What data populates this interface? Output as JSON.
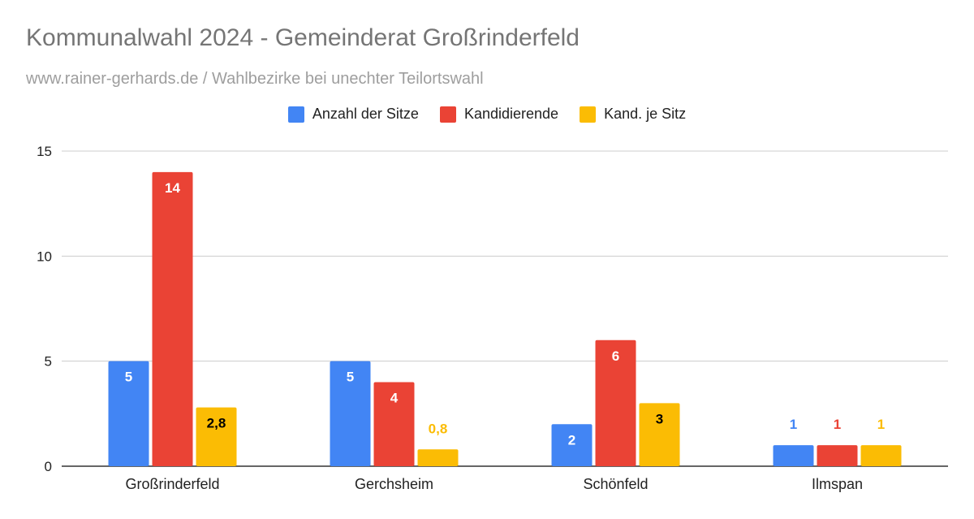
{
  "chart_data": {
    "type": "bar",
    "title": "Kommunalwahl 2024 - Gemeinderat Großrinderfeld",
    "subtitle": "www.rainer-gerhards.de / Wahlbezirke bei unechter Teilortswahl",
    "legend_position": "top",
    "grid": true,
    "ylim": [
      0,
      15
    ],
    "yticks": [
      "0",
      "5",
      "10",
      "15"
    ],
    "categories": [
      "Großrinderfeld",
      "Gerchsheim",
      "Schönfeld",
      "Ilmspan"
    ],
    "series": [
      {
        "name": "Anzahl der Sitze",
        "color": "#4285f4",
        "values": [
          5,
          5,
          2,
          1
        ],
        "labels": [
          "5",
          "5",
          "2",
          "1"
        ]
      },
      {
        "name": "Kandidierende",
        "color": "#ea4335",
        "values": [
          14,
          4,
          6,
          1
        ],
        "labels": [
          "14",
          "4",
          "6",
          "1"
        ]
      },
      {
        "name": "Kand. je Sitz",
        "color": "#fbbc04",
        "values": [
          2.8,
          0.8,
          3,
          1
        ],
        "labels": [
          "2,8",
          "0,8",
          "3",
          "1"
        ]
      }
    ]
  }
}
